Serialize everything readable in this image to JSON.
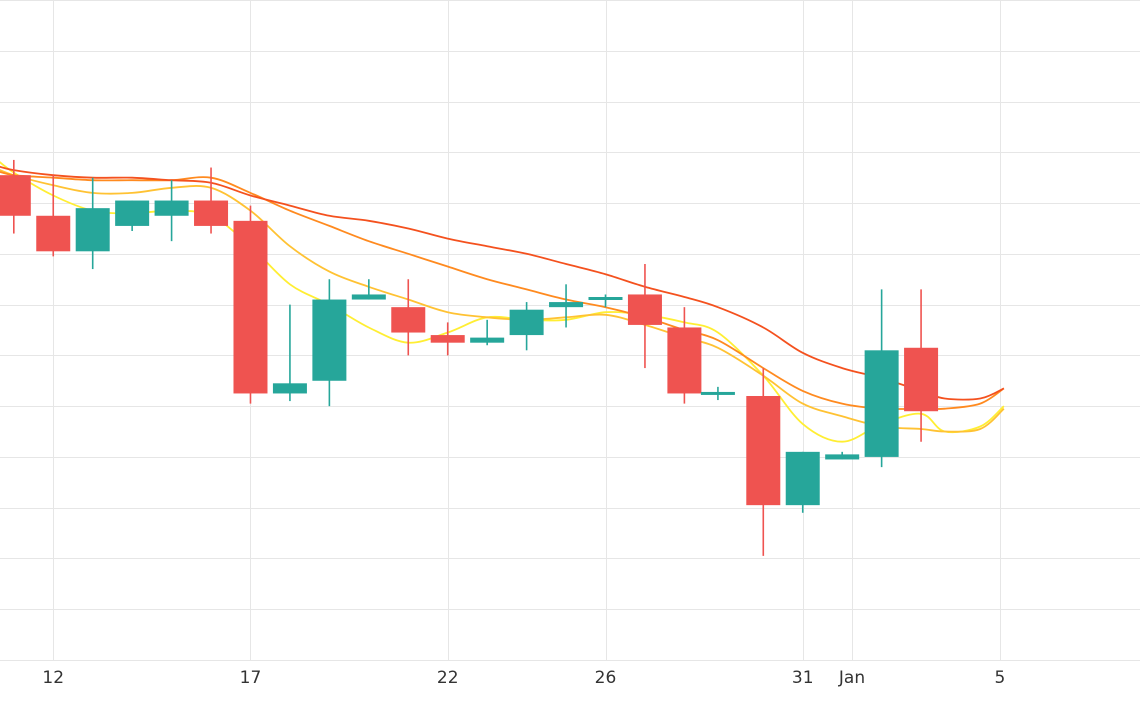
{
  "chart_data": {
    "type": "candlestick",
    "title": "",
    "xlabel": "",
    "ylabel": "",
    "ylim": [
      0,
      13
    ],
    "xlim": [
      -1.35,
      27.55
    ],
    "grid": true,
    "x_tick_labels": [
      {
        "x": 0,
        "label": "12"
      },
      {
        "x": 5,
        "label": "17"
      },
      {
        "x": 10,
        "label": "22"
      },
      {
        "x": 14,
        "label": "26"
      },
      {
        "x": 19,
        "label": "31"
      },
      {
        "x": 20.25,
        "label": "Jan"
      },
      {
        "x": 24,
        "label": "5"
      }
    ],
    "up_color": "#26a69a",
    "down_color": "#ef5350",
    "candles": [
      {
        "x": -1,
        "open": 9.55,
        "high": 9.85,
        "low": 8.4,
        "close": 8.75
      },
      {
        "x": 0,
        "open": 8.75,
        "high": 9.55,
        "low": 7.95,
        "close": 8.05
      },
      {
        "x": 1,
        "open": 8.05,
        "high": 9.5,
        "low": 7.7,
        "close": 8.9
      },
      {
        "x": 2,
        "open": 8.55,
        "high": 9.05,
        "low": 8.45,
        "close": 9.05
      },
      {
        "x": 3,
        "open": 8.75,
        "high": 9.45,
        "low": 8.25,
        "close": 9.05
      },
      {
        "x": 4,
        "open": 9.05,
        "high": 9.7,
        "low": 8.4,
        "close": 8.55
      },
      {
        "x": 5,
        "open": 8.65,
        "high": 8.95,
        "low": 5.05,
        "close": 5.25
      },
      {
        "x": 6,
        "open": 5.25,
        "high": 7.0,
        "low": 5.1,
        "close": 5.45
      },
      {
        "x": 7,
        "open": 5.5,
        "high": 7.5,
        "low": 5.0,
        "close": 7.1
      },
      {
        "x": 8,
        "open": 7.1,
        "high": 7.5,
        "low": 7.1,
        "close": 7.2
      },
      {
        "x": 9,
        "open": 6.95,
        "high": 7.5,
        "low": 6.0,
        "close": 6.45
      },
      {
        "x": 10,
        "open": 6.4,
        "high": 6.65,
        "low": 6.0,
        "close": 6.25
      },
      {
        "x": 11,
        "open": 6.25,
        "high": 6.7,
        "low": 6.2,
        "close": 6.35
      },
      {
        "x": 12,
        "open": 6.4,
        "high": 7.05,
        "low": 6.1,
        "close": 6.9
      },
      {
        "x": 13,
        "open": 6.95,
        "high": 7.4,
        "low": 6.55,
        "close": 7.05
      },
      {
        "x": 14,
        "open": 7.1,
        "high": 7.2,
        "low": 6.95,
        "close": 7.15
      },
      {
        "x": 15,
        "open": 7.2,
        "high": 7.8,
        "low": 5.75,
        "close": 6.6
      },
      {
        "x": 16,
        "open": 6.55,
        "high": 6.95,
        "low": 5.05,
        "close": 5.25
      },
      {
        "x": 16.85,
        "open": 5.25,
        "high": 5.38,
        "low": 5.12,
        "close": 5.28
      },
      {
        "x": 18,
        "open": 5.2,
        "high": 5.75,
        "low": 2.05,
        "close": 3.05
      },
      {
        "x": 19,
        "open": 3.05,
        "high": 4.1,
        "low": 2.9,
        "close": 4.1
      },
      {
        "x": 20,
        "open": 3.95,
        "high": 4.1,
        "low": 3.95,
        "close": 4.05
      },
      {
        "x": 21,
        "open": 4.0,
        "high": 7.3,
        "low": 3.8,
        "close": 6.1
      },
      {
        "x": 22,
        "open": 6.15,
        "high": 7.3,
        "low": 4.3,
        "close": 4.9
      }
    ],
    "series": [
      {
        "color": "#ffee33",
        "points": [
          [
            -1.5,
            9.9
          ],
          [
            -1,
            9.6
          ],
          [
            0,
            9.15
          ],
          [
            1,
            8.85
          ],
          [
            2,
            8.8
          ],
          [
            3,
            8.85
          ],
          [
            4,
            8.75
          ],
          [
            5,
            8.15
          ],
          [
            6,
            7.4
          ],
          [
            7,
            7.0
          ],
          [
            8,
            6.55
          ],
          [
            9,
            6.25
          ],
          [
            10,
            6.45
          ],
          [
            11,
            6.75
          ],
          [
            12,
            6.7
          ],
          [
            13,
            6.7
          ],
          [
            14,
            6.85
          ],
          [
            15,
            6.8
          ],
          [
            16,
            6.65
          ],
          [
            16.85,
            6.45
          ],
          [
            18,
            5.6
          ],
          [
            19,
            4.65
          ],
          [
            20,
            4.3
          ],
          [
            21,
            4.65
          ],
          [
            22,
            4.85
          ],
          [
            22.6,
            4.5
          ],
          [
            23.5,
            4.6
          ],
          [
            24.1,
            5.0
          ]
        ]
      },
      {
        "color": "#ffc233",
        "points": [
          [
            -1.5,
            9.7
          ],
          [
            -1,
            9.55
          ],
          [
            0,
            9.35
          ],
          [
            1,
            9.2
          ],
          [
            2,
            9.2
          ],
          [
            3,
            9.3
          ],
          [
            4,
            9.3
          ],
          [
            5,
            8.85
          ],
          [
            6,
            8.15
          ],
          [
            7,
            7.65
          ],
          [
            8,
            7.35
          ],
          [
            9,
            7.1
          ],
          [
            10,
            6.85
          ],
          [
            11,
            6.75
          ],
          [
            12,
            6.7
          ],
          [
            13,
            6.75
          ],
          [
            14,
            6.8
          ],
          [
            15,
            6.6
          ],
          [
            16,
            6.35
          ],
          [
            16.85,
            6.15
          ],
          [
            18,
            5.6
          ],
          [
            19,
            5.05
          ],
          [
            20,
            4.8
          ],
          [
            21,
            4.6
          ],
          [
            22,
            4.55
          ],
          [
            22.6,
            4.5
          ],
          [
            23.5,
            4.55
          ],
          [
            24.1,
            4.95
          ]
        ]
      },
      {
        "color": "#ff8a1f",
        "points": [
          [
            -1.5,
            9.65
          ],
          [
            -1,
            9.55
          ],
          [
            0,
            9.5
          ],
          [
            1,
            9.45
          ],
          [
            2,
            9.45
          ],
          [
            3,
            9.45
          ],
          [
            4,
            9.5
          ],
          [
            5,
            9.2
          ],
          [
            6,
            8.85
          ],
          [
            7,
            8.55
          ],
          [
            8,
            8.25
          ],
          [
            9,
            8.0
          ],
          [
            10,
            7.75
          ],
          [
            11,
            7.5
          ],
          [
            12,
            7.3
          ],
          [
            13,
            7.1
          ],
          [
            14,
            6.95
          ],
          [
            15,
            6.75
          ],
          [
            16,
            6.5
          ],
          [
            16.85,
            6.3
          ],
          [
            18,
            5.75
          ],
          [
            19,
            5.3
          ],
          [
            20,
            5.05
          ],
          [
            21,
            4.95
          ],
          [
            22,
            4.95
          ],
          [
            22.6,
            4.95
          ],
          [
            23.5,
            5.05
          ],
          [
            24.1,
            5.35
          ]
        ]
      },
      {
        "color": "#f4511e",
        "points": [
          [
            -1.5,
            9.75
          ],
          [
            -1,
            9.65
          ],
          [
            0,
            9.55
          ],
          [
            1,
            9.5
          ],
          [
            2,
            9.5
          ],
          [
            3,
            9.45
          ],
          [
            4,
            9.4
          ],
          [
            5,
            9.15
          ],
          [
            6,
            8.95
          ],
          [
            7,
            8.75
          ],
          [
            8,
            8.65
          ],
          [
            9,
            8.5
          ],
          [
            10,
            8.3
          ],
          [
            11,
            8.15
          ],
          [
            12,
            8.0
          ],
          [
            13,
            7.8
          ],
          [
            14,
            7.6
          ],
          [
            15,
            7.35
          ],
          [
            16,
            7.15
          ],
          [
            16.85,
            6.95
          ],
          [
            18,
            6.55
          ],
          [
            19,
            6.05
          ],
          [
            20,
            5.75
          ],
          [
            21,
            5.55
          ],
          [
            22,
            5.3
          ],
          [
            22.6,
            5.15
          ],
          [
            23.5,
            5.15
          ],
          [
            24.1,
            5.35
          ]
        ]
      }
    ]
  }
}
